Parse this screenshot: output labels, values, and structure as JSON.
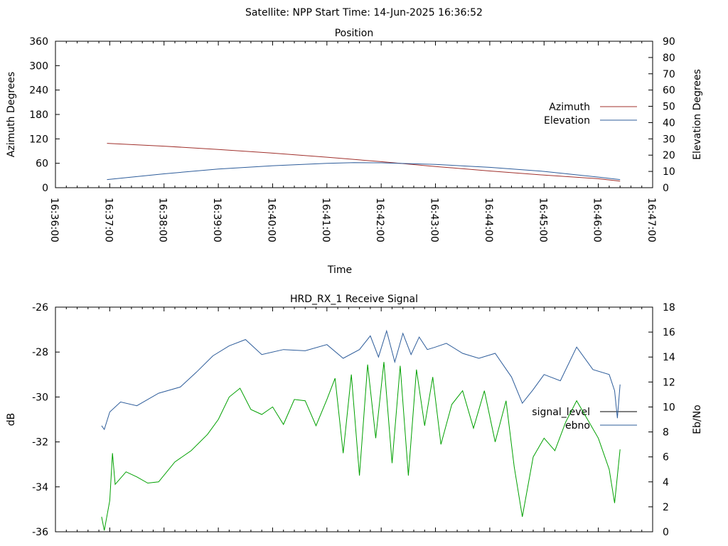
{
  "header": {
    "title": "Satellite: NPP    Start Time: 14-Jun-2025 16:36:52"
  },
  "chart_data": [
    {
      "type": "line",
      "title": "Position",
      "xlabel": "Time",
      "ylabel": "Azimuth Degrees",
      "y2label": "Elevation Degrees",
      "xlim": [
        "16:36:00",
        "16:47:00"
      ],
      "ylim": [
        0,
        360
      ],
      "y2lim": [
        0,
        90
      ],
      "yticks": [
        0,
        60,
        120,
        180,
        240,
        300,
        360
      ],
      "y2ticks": [
        0,
        10,
        20,
        30,
        40,
        50,
        60,
        70,
        80,
        90
      ],
      "xticks": [
        "16:36:00",
        "16:37:00",
        "16:38:00",
        "16:39:00",
        "16:40:00",
        "16:41:00",
        "16:42:00",
        "16:43:00",
        "16:44:00",
        "16:45:00",
        "16:46:00",
        "16:47:00"
      ],
      "x_unit": "minutes after 16:36:00",
      "legend_position": "right",
      "series": [
        {
          "name": "Azimuth",
          "axis": "left",
          "color": "#a0302c",
          "x": [
            0.95,
            2,
            3,
            4,
            5,
            6,
            7,
            8,
            9,
            10,
            10.4
          ],
          "values": [
            109,
            102,
            94,
            85,
            75,
            64,
            52,
            41,
            31,
            22,
            16
          ]
        },
        {
          "name": "Elevation",
          "axis": "right",
          "color": "#2d5c9a",
          "x": [
            0.95,
            2,
            3,
            4,
            5,
            5.5,
            6,
            7,
            8,
            9,
            10,
            10.4
          ],
          "values": [
            5,
            8.5,
            11.5,
            13.5,
            15,
            15.4,
            15.3,
            14.3,
            12.5,
            10,
            6.5,
            5
          ]
        }
      ]
    },
    {
      "type": "line",
      "title": "HRD_RX_1 Receive Signal",
      "xlabel": "",
      "ylabel": "dB",
      "y2label": "Eb/No",
      "xlim": [
        "16:36:00",
        "16:47:00"
      ],
      "ylim": [
        -36,
        -26
      ],
      "y2lim": [
        0,
        18
      ],
      "yticks": [
        -36,
        -34,
        -32,
        -30,
        -28,
        -26
      ],
      "y2ticks": [
        0,
        2,
        4,
        6,
        8,
        10,
        12,
        14,
        16,
        18
      ],
      "x_unit": "minutes after 16:36:00",
      "legend_position": "right",
      "series": [
        {
          "name": "signal_level",
          "axis": "left",
          "color": "#000000",
          "x": [],
          "values": []
        },
        {
          "name": "ebno",
          "axis": "right",
          "color": "#2d5c9a",
          "x": [
            0.85,
            0.9,
            1.0,
            1.2,
            1.5,
            1.9,
            2.3,
            2.6,
            2.9,
            3.2,
            3.5,
            3.8,
            4.2,
            4.6,
            5.0,
            5.3,
            5.6,
            5.8,
            5.95,
            6.1,
            6.25,
            6.4,
            6.55,
            6.7,
            6.85,
            7.0,
            7.2,
            7.5,
            7.8,
            8.1,
            8.4,
            8.6,
            8.8,
            9.0,
            9.3,
            9.6,
            9.9,
            10.2,
            10.3,
            10.35,
            10.4
          ],
          "values": [
            8.5,
            8.2,
            9.6,
            10.4,
            10.1,
            11.1,
            11.6,
            12.8,
            14.1,
            14.9,
            15.4,
            14.2,
            14.6,
            14.5,
            15.0,
            13.9,
            14.6,
            15.7,
            14.0,
            16.1,
            13.6,
            15.9,
            14.2,
            15.6,
            14.6,
            14.8,
            15.1,
            14.3,
            13.9,
            14.3,
            12.4,
            10.3,
            11.4,
            12.6,
            12.1,
            14.8,
            13.0,
            12.6,
            11.3,
            9.1,
            11.8
          ]
        },
        {
          "name": "",
          "axis": "right",
          "color": "#00a000",
          "x": [
            0.85,
            0.9,
            1.0,
            1.05,
            1.1,
            1.3,
            1.5,
            1.7,
            1.9,
            2.2,
            2.5,
            2.8,
            3.0,
            3.2,
            3.4,
            3.6,
            3.8,
            4.0,
            4.2,
            4.4,
            4.6,
            4.8,
            5.0,
            5.15,
            5.3,
            5.45,
            5.6,
            5.75,
            5.9,
            6.05,
            6.2,
            6.35,
            6.5,
            6.65,
            6.8,
            6.95,
            7.1,
            7.3,
            7.5,
            7.7,
            7.9,
            8.1,
            8.3,
            8.45,
            8.6,
            8.8,
            9.0,
            9.2,
            9.4,
            9.6,
            9.8,
            10.0,
            10.2,
            10.3,
            10.4
          ],
          "values": [
            1.2,
            0.1,
            2.5,
            6.3,
            3.8,
            4.8,
            4.4,
            3.9,
            4.0,
            5.6,
            6.5,
            7.8,
            9.0,
            10.8,
            11.5,
            9.8,
            9.4,
            10.0,
            8.6,
            10.6,
            10.5,
            8.5,
            10.6,
            12.3,
            6.3,
            12.6,
            4.5,
            13.4,
            7.5,
            13.6,
            5.5,
            13.3,
            4.5,
            13.0,
            8.5,
            12.4,
            7.0,
            10.2,
            11.3,
            8.3,
            11.3,
            7.2,
            10.5,
            5.2,
            1.2,
            6.0,
            7.5,
            6.5,
            8.8,
            10.5,
            9.0,
            7.5,
            5.0,
            2.3,
            6.6
          ]
        }
      ]
    }
  ]
}
